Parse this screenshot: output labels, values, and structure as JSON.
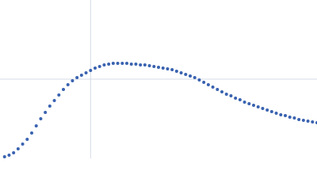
{
  "chart_data": {
    "type": "scatter",
    "x": [
      0.005,
      0.01,
      0.015,
      0.02,
      0.025,
      0.03,
      0.035,
      0.04,
      0.045,
      0.05,
      0.055,
      0.06,
      0.065,
      0.07,
      0.075,
      0.08,
      0.085,
      0.09,
      0.095,
      0.1,
      0.105,
      0.11,
      0.115,
      0.12,
      0.125,
      0.13,
      0.135,
      0.14,
      0.145,
      0.15,
      0.155,
      0.16,
      0.165,
      0.17,
      0.175,
      0.18,
      0.185,
      0.19,
      0.195,
      0.2,
      0.205,
      0.21,
      0.215,
      0.22,
      0.225,
      0.23,
      0.235,
      0.24,
      0.245,
      0.25,
      0.255,
      0.26,
      0.265,
      0.27,
      0.275,
      0.28,
      0.285,
      0.29,
      0.295,
      0.3,
      0.305,
      0.31,
      0.315,
      0.32,
      0.325,
      0.33,
      0.335,
      0.34,
      0.345,
      0.35
    ],
    "series": [
      {
        "color": "#3a63b0",
        "values": [
          0.02,
          0.04,
          0.07,
          0.12,
          0.18,
          0.24,
          0.32,
          0.41,
          0.5,
          0.58,
          0.66,
          0.73,
          0.8,
          0.87,
          0.93,
          0.98,
          1.02,
          1.05,
          1.08,
          1.11,
          1.14,
          1.16,
          1.18,
          1.19,
          1.2,
          1.2,
          1.2,
          1.2,
          1.19,
          1.19,
          1.18,
          1.18,
          1.17,
          1.16,
          1.15,
          1.14,
          1.13,
          1.12,
          1.1,
          1.08,
          1.06,
          1.04,
          1.02,
          0.99,
          0.96,
          0.93,
          0.9,
          0.87,
          0.84,
          0.81,
          0.79,
          0.76,
          0.74,
          0.71,
          0.69,
          0.67,
          0.65,
          0.63,
          0.61,
          0.59,
          0.57,
          0.55,
          0.54,
          0.52,
          0.51,
          0.49,
          0.48,
          0.47,
          0.46,
          0.45
        ]
      }
    ],
    "xlim": [
      0,
      0.35
    ],
    "ylim": [
      0,
      2
    ],
    "xticks": [
      0.1
    ],
    "yticks": [
      1
    ],
    "grid": true
  }
}
